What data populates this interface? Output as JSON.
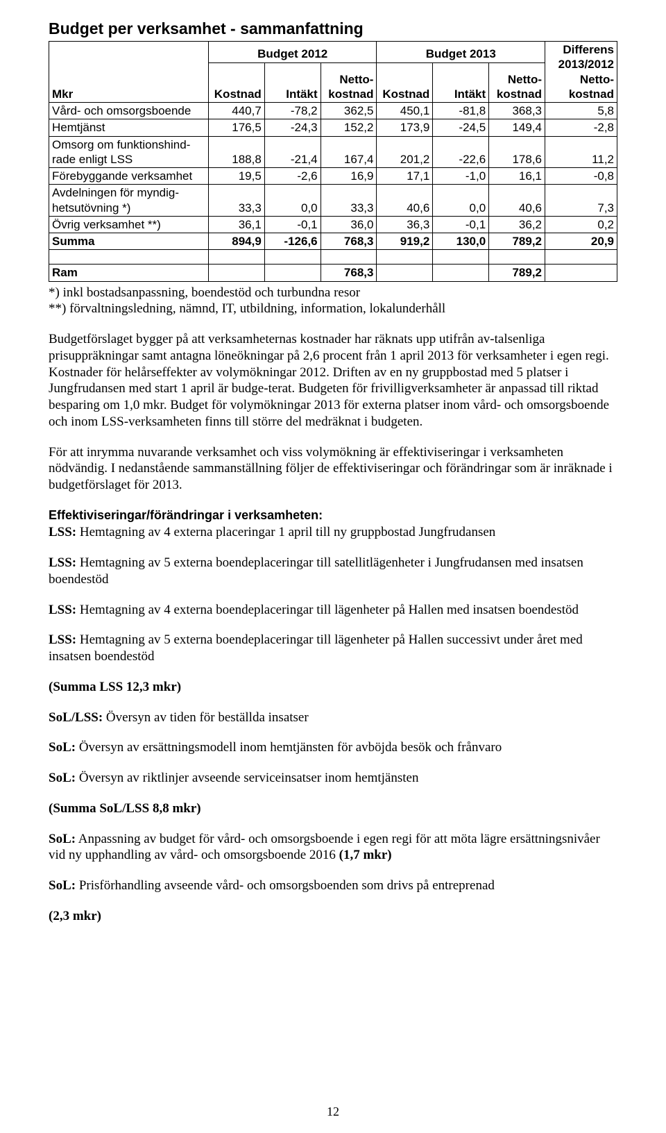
{
  "title": "Budget per verksamhet - sammanfattning",
  "header": {
    "b2012": "Budget 2012",
    "b2013": "Budget 2013",
    "diff": "Differens 2013/2012 Netto-kostnad",
    "col0": "Mkr",
    "col1": "Kostnad",
    "col2": "Intäkt",
    "col3": "Netto-kostnad",
    "col4": "Kostnad",
    "col5": "Intäkt",
    "col6": "Netto-kostnad"
  },
  "rows": {
    "r1": {
      "label": "Vård- och omsorgsboende",
      "label_multiline": false,
      "c1": "440,7",
      "c2": "-78,2",
      "c3": "362,5",
      "c4": "450,1",
      "c5": "-81,8",
      "c6": "368,3",
      "c7": "5,8"
    },
    "r2": {
      "label": "Hemtjänst",
      "c1": "176,5",
      "c2": "-24,3",
      "c3": "152,2",
      "c4": "173,9",
      "c5": "-24,5",
      "c6": "149,4",
      "c7": "-2,8"
    },
    "r3": {
      "label_l1": "Omsorg om funktionshind-",
      "label_l2": "rade enligt LSS",
      "c1": "188,8",
      "c2": "-21,4",
      "c3": "167,4",
      "c4": "201,2",
      "c5": "-22,6",
      "c6": "178,6",
      "c7": "11,2"
    },
    "r4": {
      "label": "Förebyggande verksamhet",
      "c1": "19,5",
      "c2": "-2,6",
      "c3": "16,9",
      "c4": "17,1",
      "c5": "-1,0",
      "c6": "16,1",
      "c7": "-0,8"
    },
    "r5": {
      "label_l1": "Avdelningen för myndig-",
      "label_l2": "hetsutövning *)",
      "c1": "33,3",
      "c2": "0,0",
      "c3": "33,3",
      "c4": "40,6",
      "c5": "0,0",
      "c6": "40,6",
      "c7": "7,3"
    },
    "r6": {
      "label": "Övrig verksamhet **)",
      "c1": "36,1",
      "c2": "-0,1",
      "c3": "36,0",
      "c4": "36,3",
      "c5": "-0,1",
      "c6": "36,2",
      "c7": "0,2"
    },
    "sum": {
      "label": "Summa",
      "c1": "894,9",
      "c2": "-126,6",
      "c3": "768,3",
      "c4": "919,2",
      "c5": "130,0",
      "c6": "789,2",
      "c7": "20,9"
    },
    "ram": {
      "label": "Ram",
      "c3": "768,3",
      "c6": "789,2"
    }
  },
  "footnotes": {
    "f1": "*) inkl bostadsanpassning, boendestöd och turbundna resor",
    "f2": "**) förvaltningsledning, nämnd, IT, utbildning, information, lokalunderhåll"
  },
  "para1": "Budgetförslaget bygger på att verksamheternas kostnader har räknats upp utifrån av-talsenliga prisuppräkningar samt antagna löneökningar på 2,6 procent från 1 april 2013 för verksamheter i egen regi. Kostnader för helårseffekter av volymökningar 2012. Driften av en ny gruppbostad med 5 platser i Jungfrudansen med start 1 april är budge-terat. Budgeten för frivilligverksamheter är anpassad till riktad besparing om 1,0 mkr. Budget för volymökningar 2013 för externa platser inom vård- och omsorgsboende och inom LSS-verksamheten finns till större del medräknat i budgeten.",
  "para2": "För att inrymma nuvarande verksamhet och viss volymökning är effektiviseringar i verksamheten nödvändig. I nedanstående sammanställning följer de effektiviseringar och förändringar som är inräknade i budgetförslaget för 2013.",
  "sectionHead": "Effektiviseringar/förändringar i verksamheten:",
  "blockA": {
    "l1_lead": "LSS:",
    "l1": " Hemtagning av 4 externa placeringar 1 april till ny gruppbostad Jungfrudansen",
    "l2_lead": "LSS:",
    "l2": " Hemtagning av 5 externa boendeplaceringar till satellitlägenheter i Jungfrudansen med insatsen boendestöd",
    "l3_lead": "LSS:",
    "l3": " Hemtagning av 4 externa boendeplaceringar till lägenheter på Hallen med insatsen boendestöd",
    "l4_lead": "LSS:",
    "l4": " Hemtagning av 5 externa boendeplaceringar till lägenheter på Hallen successivt under året med insatsen boendestöd",
    "sum": "(Summa LSS 12,3 mkr)"
  },
  "blockB": {
    "l1_lead": "SoL/LSS:",
    "l1": " Översyn av tiden för beställda insatser",
    "l2_lead": "SoL:",
    "l2": " Översyn av ersättningsmodell inom hemtjänsten för avböjda besök och frånvaro",
    "l3_lead": "SoL:",
    "l3": " Översyn av riktlinjer avseende serviceinsatser inom hemtjänsten",
    "sum": "(Summa SoL/LSS 8,8 mkr)"
  },
  "blockC": {
    "l1_lead": "SoL:",
    "l1": " Anpassning av budget för vård- och omsorgsboende i egen regi för att möta lägre ersättningsnivåer vid ny upphandling av vård- och omsorgsboende 2016 ",
    "l1_tail": "(1,7 mkr)",
    "l2_lead": "SoL:",
    "l2": " Prisförhandling avseende vård- och omsorgsboenden som drivs på entreprenad",
    "l2_sum": "(2,3 mkr)"
  },
  "page_number": "12",
  "colors": {
    "text": "#000000",
    "bg": "#ffffff",
    "border": "#000000"
  }
}
